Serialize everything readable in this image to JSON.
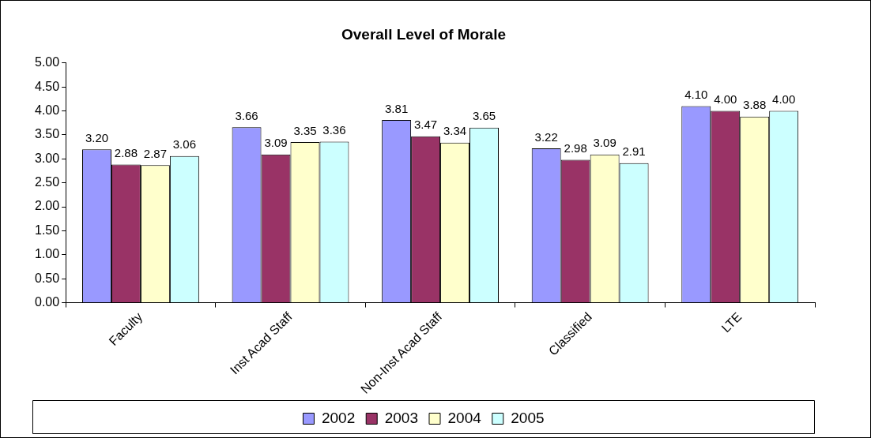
{
  "chart_data": {
    "type": "bar",
    "title": "Overall Level of Morale",
    "categories": [
      "Faculty",
      "Inst Acad Staff",
      "Non-Inst Acad Staff",
      "Classified",
      "LTE"
    ],
    "series": [
      {
        "name": "2002",
        "color": "#9999ff",
        "values": [
          3.2,
          3.66,
          3.81,
          3.22,
          4.1
        ],
        "value_labels": [
          "3.20",
          "3.66",
          "3.81",
          "3.22",
          "4.10"
        ]
      },
      {
        "name": "2003",
        "color": "#993366",
        "values": [
          2.88,
          3.09,
          3.47,
          2.98,
          4.0
        ],
        "value_labels": [
          "2.88",
          "3.09",
          "3.47",
          "2.98",
          "4.00"
        ]
      },
      {
        "name": "2004",
        "color": "#ffffcc",
        "values": [
          2.87,
          3.35,
          3.34,
          3.09,
          3.88
        ],
        "value_labels": [
          "2.87",
          "3.35",
          "3.34",
          "3.09",
          "3.88"
        ]
      },
      {
        "name": "2005",
        "color": "#ccffff",
        "values": [
          3.06,
          3.36,
          3.65,
          2.91,
          4.0
        ],
        "value_labels": [
          "3.06",
          "3.36",
          "3.65",
          "2.91",
          "4.00"
        ]
      }
    ],
    "ylim": [
      0,
      5
    ],
    "yticks": [
      {
        "value": 0,
        "label": "0.00"
      },
      {
        "value": 0.5,
        "label": "0.50"
      },
      {
        "value": 1,
        "label": "1.00"
      },
      {
        "value": 1.5,
        "label": "1.50"
      },
      {
        "value": 2,
        "label": "2.00"
      },
      {
        "value": 2.5,
        "label": "2.50"
      },
      {
        "value": 3,
        "label": "3.00"
      },
      {
        "value": 3.5,
        "label": "3.50"
      },
      {
        "value": 4,
        "label": "4.00"
      },
      {
        "value": 4.5,
        "label": "4.50"
      },
      {
        "value": 5,
        "label": "5.00"
      }
    ],
    "legend": "bottom",
    "grid": false
  }
}
